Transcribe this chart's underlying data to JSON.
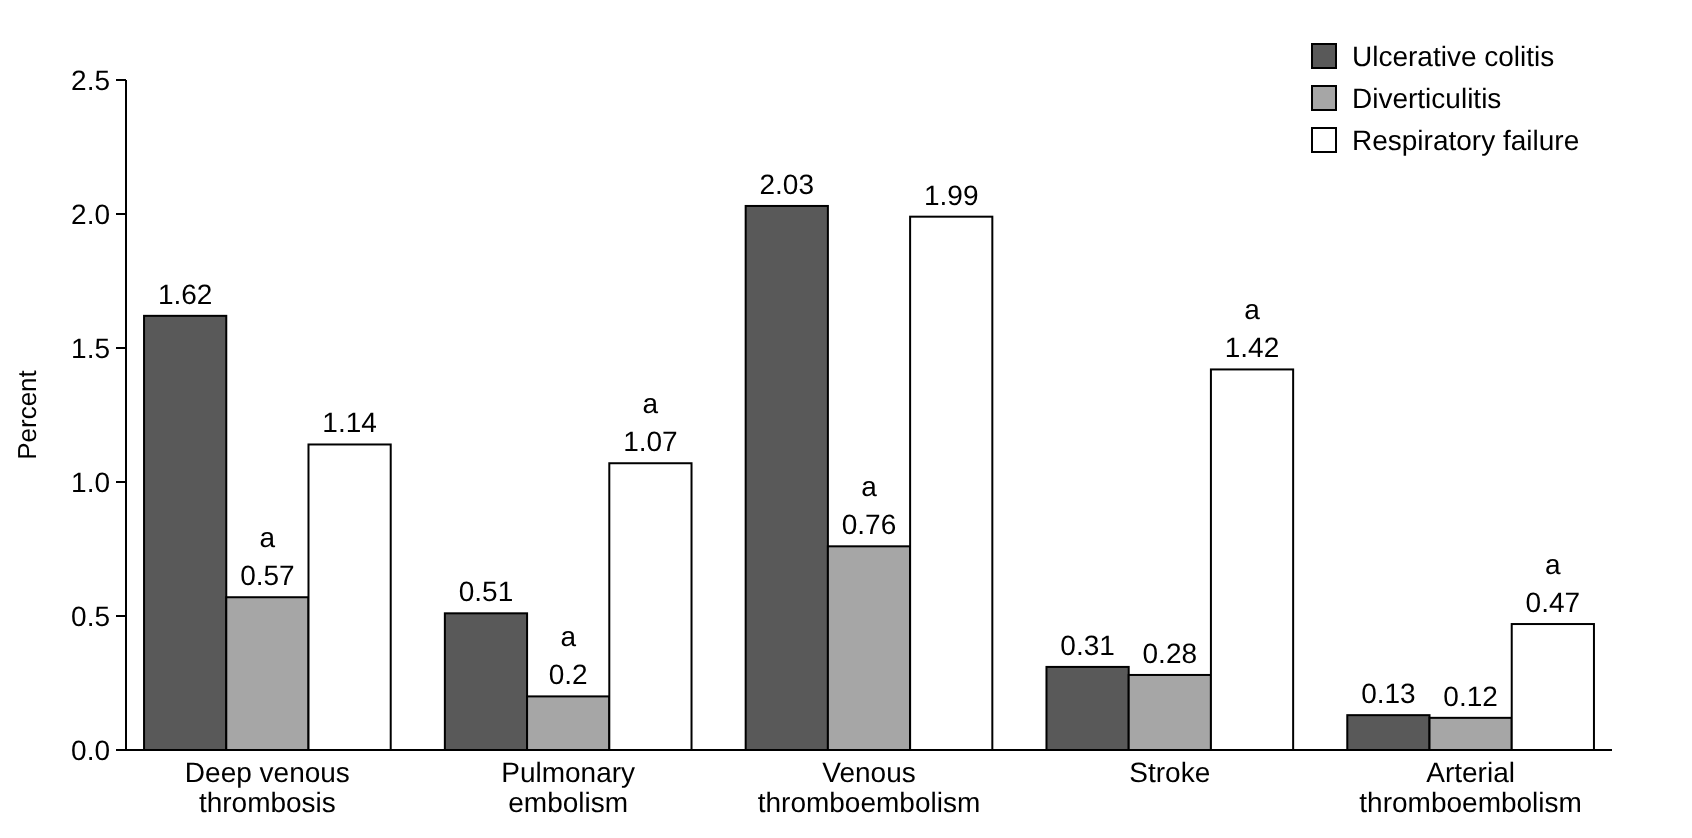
{
  "chart_data": {
    "type": "bar",
    "ylabel": "Percent",
    "categories": [
      "Deep venous thrombosis",
      "Pulmonary embolism",
      "Venous thromboembolism",
      "Stroke",
      "Arterial thromboembolism"
    ],
    "series": [
      {
        "name": "Ulcerative colitis",
        "color": "#595959",
        "values": [
          1.62,
          0.51,
          2.03,
          0.31,
          0.13
        ],
        "value_labels": [
          "1.62",
          "0.51",
          "2.03",
          "0.31",
          "0.13"
        ]
      },
      {
        "name": "Diverticulitis",
        "color": "#a6a6a6",
        "values": [
          0.57,
          0.2,
          0.76,
          0.28,
          0.12
        ],
        "value_labels": [
          "a\n0.57",
          "a\n0.2",
          "a\n0.76",
          "0.28",
          "0.12"
        ]
      },
      {
        "name": "Respiratory failure",
        "color": "#ffffff",
        "values": [
          1.14,
          1.07,
          1.99,
          1.42,
          0.47
        ],
        "value_labels": [
          "1.14",
          "a\n1.07",
          "1.99",
          "a\n1.42",
          "a\n0.47"
        ]
      }
    ],
    "ylim": [
      0,
      2.5
    ],
    "yticks": [
      {
        "value": 0,
        "label": "0.0"
      },
      {
        "value": 0.5,
        "label": "0.5"
      },
      {
        "value": 1,
        "label": "1.0"
      },
      {
        "value": 1.5,
        "label": "1.5"
      },
      {
        "value": 2,
        "label": "2.0"
      },
      {
        "value": 2.5,
        "label": "2.5"
      }
    ],
    "legend": "top right",
    "grid": false
  }
}
